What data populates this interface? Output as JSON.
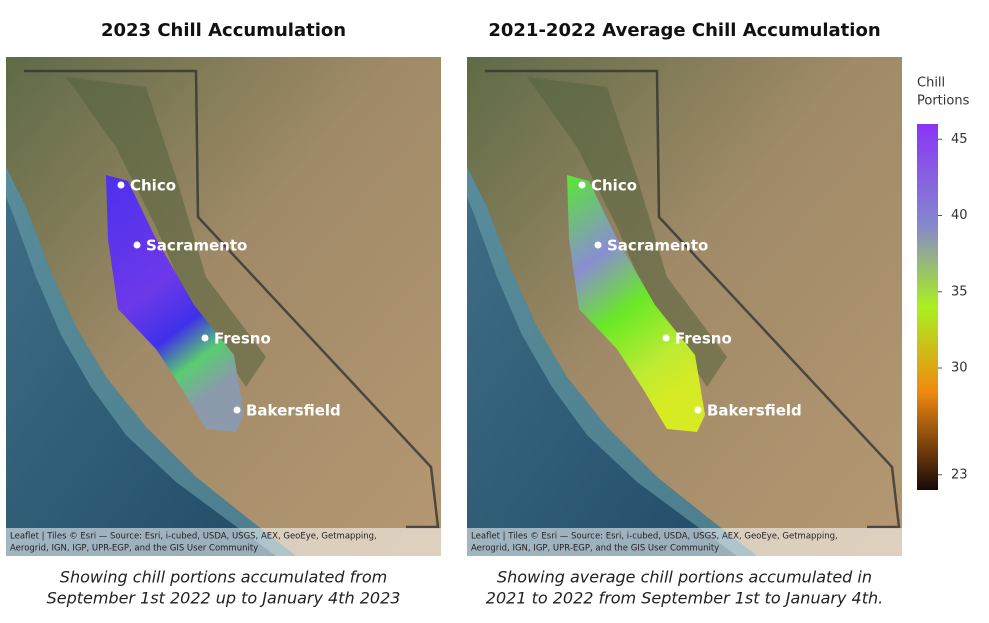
{
  "panels": [
    {
      "title": "2023 Chill Accumulation",
      "cities": [
        "Chico",
        "Sacramento",
        "Fresno",
        "Bakersfield"
      ],
      "attribution": [
        "Leaflet | Tiles © Esri — Source: Esri, i-cubed, USDA, USGS, AEX, GeoEye, Getmapping,",
        "Aerogrid, IGN, IGP, UPR-EGP, and the GIS User Community"
      ],
      "caption": [
        "Showing chill portions accumulated from",
        "September 1st 2022 up to January 4th 2023"
      ]
    },
    {
      "title": "2021-2022 Average Chill Accumulation",
      "cities": [
        "Chico",
        "Sacramento",
        "Fresno",
        "Bakersfield"
      ],
      "attribution": [
        "Leaflet | Tiles © Esri — Source: Esri, i-cubed, USDA, USGS, AEX, GeoEye, Getmapping,",
        "Aerogrid, IGN, IGP, UPR-EGP, and the GIS User Community"
      ],
      "caption": [
        "Showing average chill portions accumulated in",
        "2021 to 2022 from September 1st to January 4th."
      ]
    }
  ],
  "legend": {
    "title": [
      "Chill",
      "Portions"
    ],
    "range": [
      22,
      46
    ],
    "ticks": [
      45,
      40,
      35,
      30,
      23
    ]
  }
}
